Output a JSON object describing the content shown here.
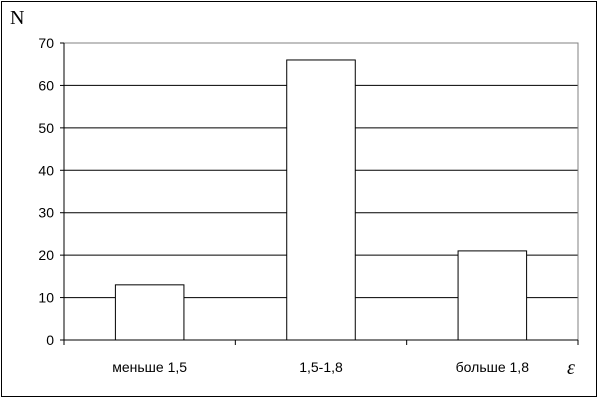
{
  "chart_data": {
    "type": "bar",
    "categories": [
      "меньше 1,5",
      "1,5-1,8",
      "больше 1,8"
    ],
    "values": [
      13,
      66,
      21
    ],
    "xlabel": "ε",
    "ylabel": "N",
    "ylim": [
      0,
      70
    ],
    "yticks": [
      0,
      10,
      20,
      30,
      40,
      50,
      60,
      70
    ],
    "grid": true,
    "legend": "none"
  },
  "colors": {
    "bar_fill": "#ffffff",
    "bar_stroke": "#000000",
    "grid": "#000000",
    "plot_border": "#808080",
    "frame": "#000000"
  }
}
